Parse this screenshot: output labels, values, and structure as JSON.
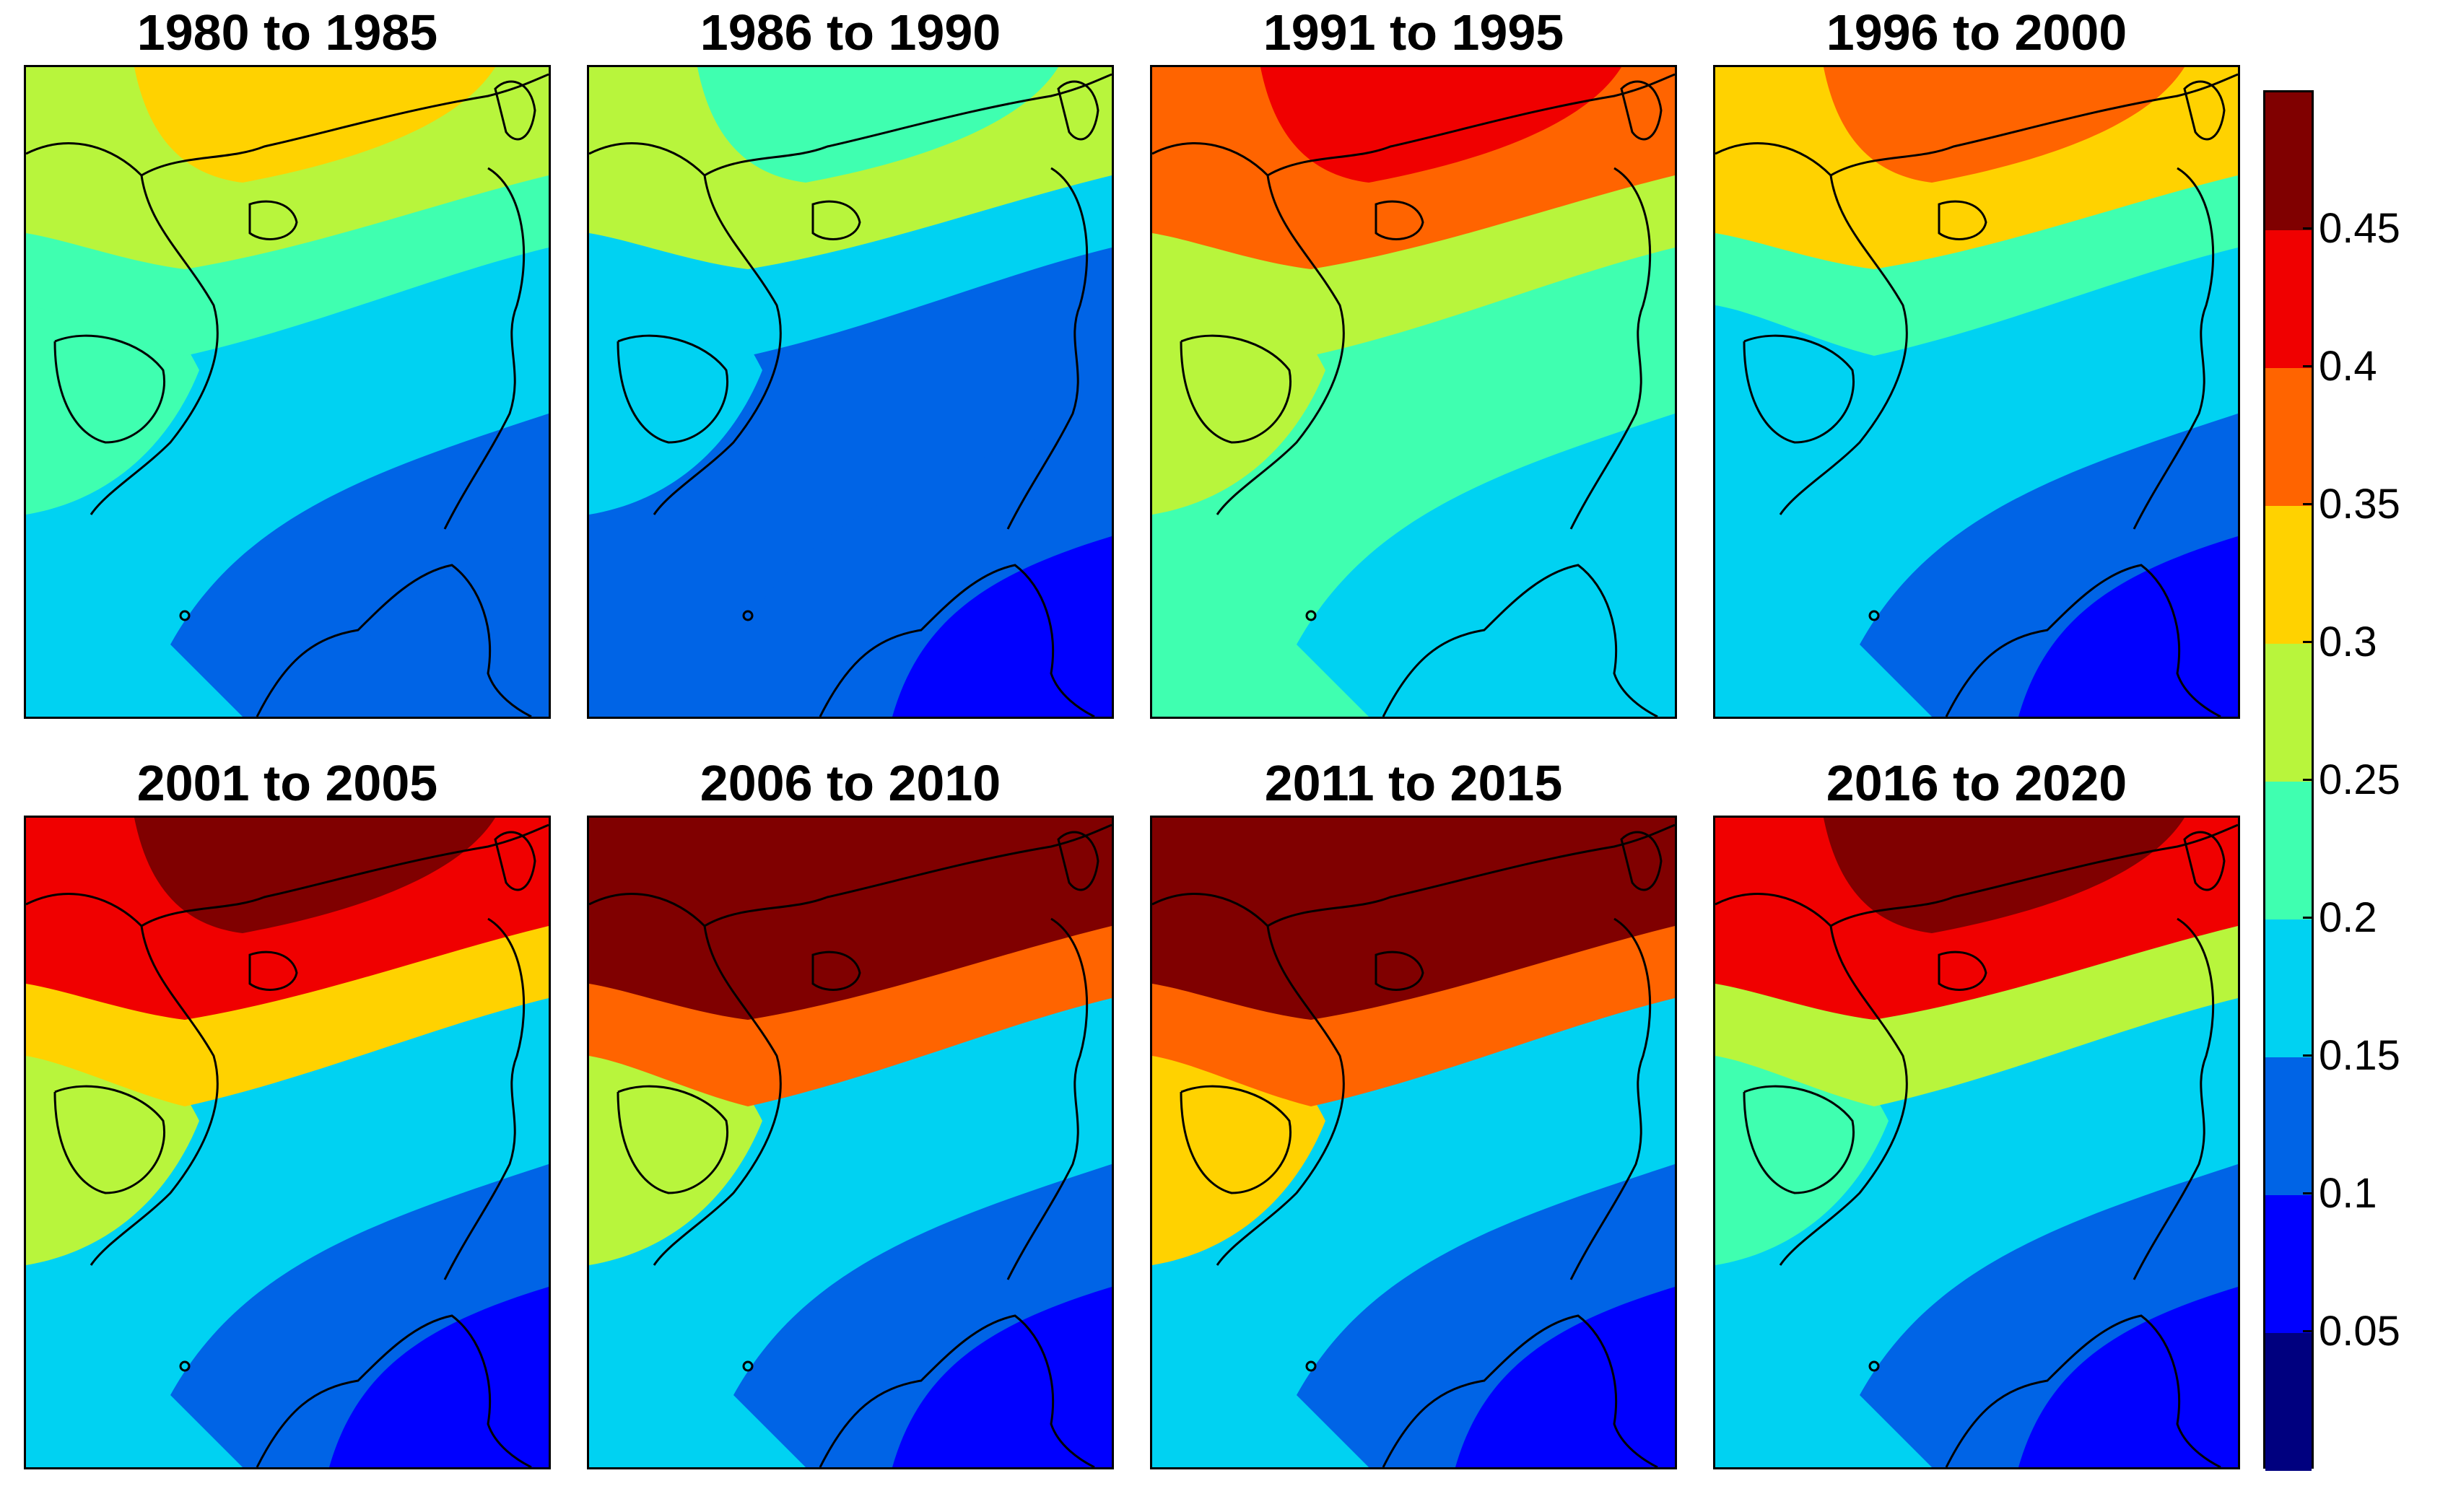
{
  "panels": [
    {
      "title": "1980 to 1985",
      "levels": {
        "north": 0.25,
        "north_core": 0.3,
        "gulf": 0.2,
        "sea": 0.15,
        "south": 0.1,
        "south_core": 0.1,
        "west": 0.2
      }
    },
    {
      "title": "1986 to 1990",
      "levels": {
        "north": 0.25,
        "north_core": 0.2,
        "gulf": 0.15,
        "sea": 0.1,
        "south": 0.1,
        "south_core": 0.05,
        "west": 0.15
      }
    },
    {
      "title": "1991 to 1995",
      "levels": {
        "north": 0.35,
        "north_core": 0.4,
        "gulf": 0.25,
        "sea": 0.2,
        "south": 0.15,
        "south_core": 0.15,
        "west": 0.25
      }
    },
    {
      "title": "1996 to 2000",
      "levels": {
        "north": 0.3,
        "north_core": 0.35,
        "gulf": 0.2,
        "sea": 0.15,
        "south": 0.1,
        "south_core": 0.05,
        "west": 0.15
      }
    },
    {
      "title": "2001 to 2005",
      "levels": {
        "north": 0.4,
        "north_core": 0.45,
        "gulf": 0.3,
        "sea": 0.15,
        "south": 0.1,
        "south_core": 0.05,
        "west": 0.25
      }
    },
    {
      "title": "2006 to 2010",
      "levels": {
        "north": 0.45,
        "north_core": 0.45,
        "gulf": 0.35,
        "sea": 0.15,
        "south": 0.1,
        "south_core": 0.05,
        "west": 0.25
      }
    },
    {
      "title": "2011 to 2015",
      "levels": {
        "north": 0.45,
        "north_core": 0.45,
        "gulf": 0.35,
        "sea": 0.15,
        "south": 0.1,
        "south_core": 0.05,
        "west": 0.3
      }
    },
    {
      "title": "2016 to 2020",
      "levels": {
        "north": 0.4,
        "north_core": 0.45,
        "gulf": 0.25,
        "sea": 0.15,
        "south": 0.1,
        "south_core": 0.05,
        "west": 0.2
      }
    }
  ],
  "colorbar": {
    "ticks": [
      "0.05",
      "0.1",
      "0.15",
      "0.2",
      "0.25",
      "0.3",
      "0.35",
      "0.4",
      "0.45"
    ],
    "range": [
      0,
      0.5
    ],
    "colors": [
      "#00007f",
      "#0000ff",
      "#0064e6",
      "#00d2f2",
      "#3fffb0",
      "#b8f53c",
      "#ffd200",
      "#ff6400",
      "#f00000",
      "#800000"
    ]
  },
  "chart_data": {
    "type": "heatmap",
    "title": "",
    "xlabel": "",
    "ylabel": "",
    "colorbar_range": [
      0,
      0.5
    ],
    "colorbar_ticks": [
      0.05,
      0.1,
      0.15,
      0.2,
      0.25,
      0.3,
      0.35,
      0.4,
      0.45
    ],
    "series": [
      {
        "name": "1980 to 1985",
        "north_region": 0.25,
        "sea_center": 0.15,
        "southeast": 0.1
      },
      {
        "name": "1986 to 1990",
        "north_region": 0.25,
        "sea_center": 0.1,
        "southeast": 0.05
      },
      {
        "name": "1991 to 1995",
        "north_region": 0.4,
        "sea_center": 0.2,
        "southeast": 0.15
      },
      {
        "name": "1996 to 2000",
        "north_region": 0.3,
        "sea_center": 0.15,
        "southeast": 0.05
      },
      {
        "name": "2001 to 2005",
        "north_region": 0.45,
        "sea_center": 0.15,
        "southeast": 0.05
      },
      {
        "name": "2006 to 2010",
        "north_region": 0.45,
        "sea_center": 0.15,
        "southeast": 0.05
      },
      {
        "name": "2011 to 2015",
        "north_region": 0.45,
        "sea_center": 0.15,
        "southeast": 0.05
      },
      {
        "name": "2016 to 2020",
        "north_region": 0.45,
        "sea_center": 0.15,
        "southeast": 0.05
      }
    ]
  }
}
